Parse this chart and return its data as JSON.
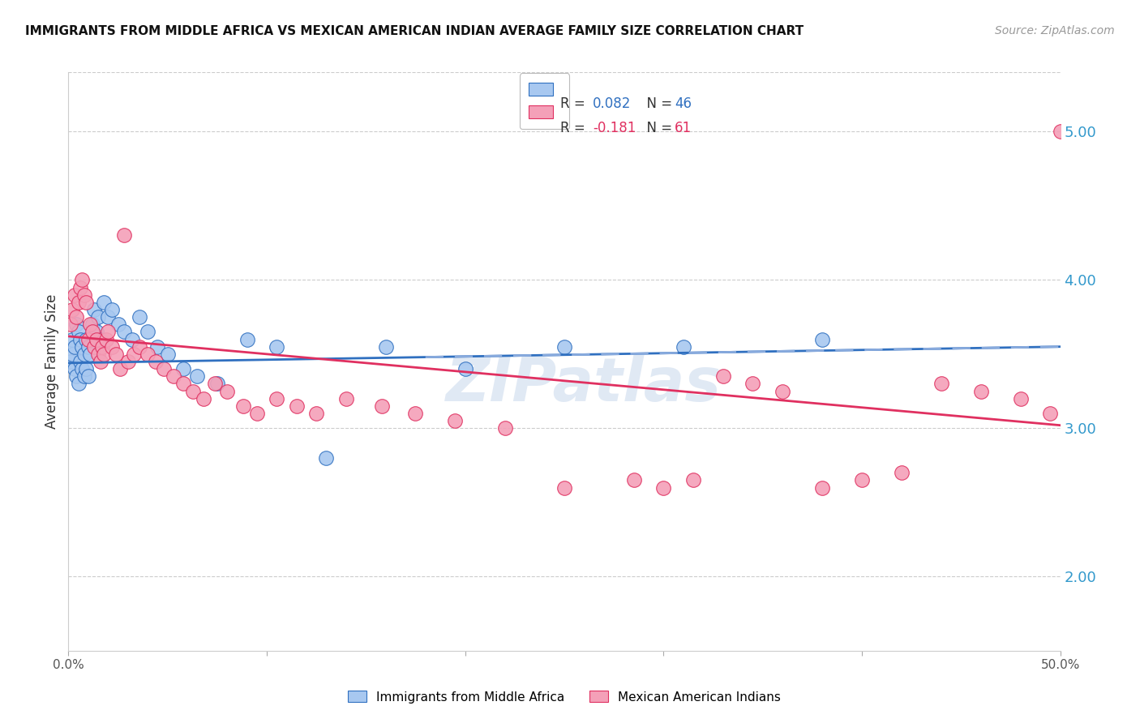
{
  "title": "IMMIGRANTS FROM MIDDLE AFRICA VS MEXICAN AMERICAN INDIAN AVERAGE FAMILY SIZE CORRELATION CHART",
  "source": "Source: ZipAtlas.com",
  "ylabel": "Average Family Size",
  "right_yticks": [
    2.0,
    3.0,
    4.0,
    5.0
  ],
  "blue_label": "Immigrants from Middle Africa",
  "pink_label": "Mexican American Indians",
  "blue_R": 0.082,
  "blue_N": 46,
  "pink_R": -0.181,
  "pink_N": 61,
  "blue_color": "#A8C8F0",
  "pink_color": "#F4A0B8",
  "blue_line_color": "#3070C0",
  "pink_line_color": "#E03060",
  "watermark": "ZIPatlas",
  "xlim": [
    0.0,
    0.5
  ],
  "ylim": [
    1.5,
    5.4
  ],
  "blue_points_x": [
    0.001,
    0.002,
    0.002,
    0.003,
    0.003,
    0.004,
    0.004,
    0.005,
    0.005,
    0.006,
    0.006,
    0.007,
    0.007,
    0.008,
    0.008,
    0.009,
    0.009,
    0.01,
    0.01,
    0.011,
    0.012,
    0.013,
    0.014,
    0.015,
    0.016,
    0.018,
    0.02,
    0.022,
    0.025,
    0.028,
    0.032,
    0.036,
    0.04,
    0.045,
    0.05,
    0.058,
    0.065,
    0.075,
    0.09,
    0.105,
    0.13,
    0.16,
    0.2,
    0.25,
    0.31,
    0.38
  ],
  "blue_points_y": [
    3.45,
    3.6,
    3.5,
    3.55,
    3.4,
    3.7,
    3.35,
    3.65,
    3.3,
    3.6,
    3.45,
    3.55,
    3.4,
    3.5,
    3.35,
    3.6,
    3.4,
    3.55,
    3.35,
    3.5,
    3.7,
    3.8,
    3.65,
    3.75,
    3.6,
    3.85,
    3.75,
    3.8,
    3.7,
    3.65,
    3.6,
    3.75,
    3.65,
    3.55,
    3.5,
    3.4,
    3.35,
    3.3,
    3.6,
    3.55,
    2.8,
    3.55,
    3.4,
    3.55,
    3.55,
    3.6
  ],
  "pink_points_x": [
    0.001,
    0.002,
    0.003,
    0.004,
    0.005,
    0.006,
    0.007,
    0.008,
    0.009,
    0.01,
    0.011,
    0.012,
    0.013,
    0.014,
    0.015,
    0.016,
    0.017,
    0.018,
    0.019,
    0.02,
    0.022,
    0.024,
    0.026,
    0.028,
    0.03,
    0.033,
    0.036,
    0.04,
    0.044,
    0.048,
    0.053,
    0.058,
    0.063,
    0.068,
    0.074,
    0.08,
    0.088,
    0.095,
    0.105,
    0.115,
    0.125,
    0.14,
    0.158,
    0.175,
    0.195,
    0.22,
    0.25,
    0.285,
    0.3,
    0.315,
    0.33,
    0.345,
    0.36,
    0.38,
    0.4,
    0.42,
    0.44,
    0.46,
    0.48,
    0.495,
    0.5
  ],
  "pink_points_y": [
    3.7,
    3.8,
    3.9,
    3.75,
    3.85,
    3.95,
    4.0,
    3.9,
    3.85,
    3.6,
    3.7,
    3.65,
    3.55,
    3.6,
    3.5,
    3.45,
    3.55,
    3.5,
    3.6,
    3.65,
    3.55,
    3.5,
    3.4,
    4.3,
    3.45,
    3.5,
    3.55,
    3.5,
    3.45,
    3.4,
    3.35,
    3.3,
    3.25,
    3.2,
    3.3,
    3.25,
    3.15,
    3.1,
    3.2,
    3.15,
    3.1,
    3.2,
    3.15,
    3.1,
    3.05,
    3.0,
    2.6,
    2.65,
    2.6,
    2.65,
    3.35,
    3.3,
    3.25,
    2.6,
    2.65,
    2.7,
    3.3,
    3.25,
    3.2,
    3.1,
    5.0
  ]
}
